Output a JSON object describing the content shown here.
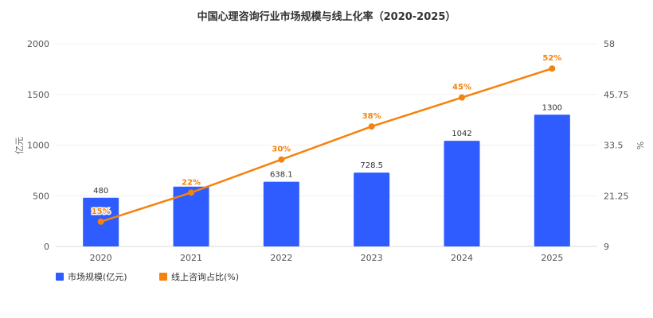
{
  "chart_data": {
    "type": "bar",
    "title": "中国心理咨询行业市场规模与线上化率（2020-2025）",
    "categories": [
      "2020",
      "2021",
      "2022",
      "2023",
      "2024",
      "2025"
    ],
    "series": [
      {
        "name": "市场规模(亿元)",
        "type": "bar",
        "axis": "left",
        "color": "#2f5cff",
        "values": [
          480,
          590,
          638.1,
          728.5,
          1042,
          1300
        ],
        "labels": [
          "480",
          "",
          "638.1",
          "728.5",
          "1042",
          "1300"
        ]
      },
      {
        "name": "线上咨询占比(%)",
        "type": "line",
        "axis": "right",
        "color": "#f5820d",
        "values": [
          15,
          22,
          30,
          38,
          45,
          52
        ],
        "labels": [
          "15%",
          "22%",
          "30%",
          "38%",
          "45%",
          "52%"
        ]
      }
    ],
    "ylabel_left": "亿元",
    "ylabel_right": "%",
    "ylim_left": [
      0,
      2000
    ],
    "ylim_right": [
      9,
      58
    ],
    "yticks_left": [
      "0",
      "500",
      "1000",
      "1500",
      "2000"
    ],
    "yticks_right": [
      "9",
      "21.25",
      "33.5",
      "45.75",
      "58"
    ],
    "grid": true,
    "legend": "bottom-left"
  }
}
